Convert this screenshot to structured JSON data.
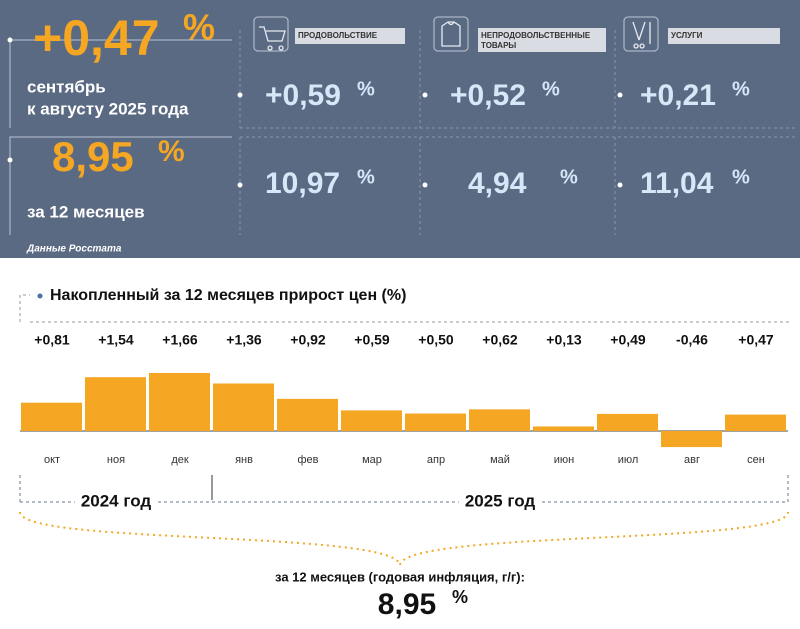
{
  "header": {
    "monthly": {
      "value": "+0,47",
      "unit": "%",
      "label_lines": [
        "сентябрь",
        "к августу 2025 года"
      ]
    },
    "annual": {
      "value": "8,95",
      "unit": "%",
      "label": "за 12 месяцев"
    },
    "groups": [
      {
        "name_lines": [
          "ПРОДОВОЛЬСТВИЕ"
        ],
        "monthly": "+0,59",
        "monthly_unit": "%",
        "annual": "10,97",
        "annual_unit": "%"
      },
      {
        "name_lines": [
          "НЕПРОДОВОЛЬСТВЕННЫЕ",
          "ТОВАРЫ"
        ],
        "monthly": "+0,52",
        "monthly_unit": "%",
        "annual": "4,94",
        "annual_unit": "%"
      },
      {
        "name_lines": [
          "УСЛУГИ"
        ],
        "monthly": "+0,21",
        "monthly_unit": "%",
        "annual": "11,04",
        "annual_unit": "%"
      }
    ],
    "source": "Данные Росстата"
  },
  "chart_data": {
    "type": "bar",
    "title": "Накопленный за 12 месяцев прирост цен (%)",
    "categories": [
      "окт",
      "ноя",
      "дек",
      "янв",
      "фев",
      "мар",
      "апр",
      "май",
      "июн",
      "июл",
      "авг",
      "сен"
    ],
    "values": [
      0.81,
      1.54,
      1.66,
      1.36,
      0.92,
      0.59,
      0.5,
      0.62,
      0.13,
      0.49,
      -0.46,
      0.47
    ],
    "value_labels": [
      "+0,81",
      "+1,54",
      "+1,66",
      "+1,36",
      "+0,92",
      "+0,59",
      "+0,50",
      "+0,62",
      "+0,13",
      "+0,49",
      "-0,46",
      "+0,47"
    ],
    "color": "#f5a623",
    "years": [
      {
        "label": "2024 год",
        "months": 3
      },
      {
        "label": "2025 год",
        "months": 9
      }
    ]
  },
  "footer": {
    "label": "за 12 месяцев (годовая инфляция, г/г):",
    "value": "8,95",
    "unit": "%"
  }
}
